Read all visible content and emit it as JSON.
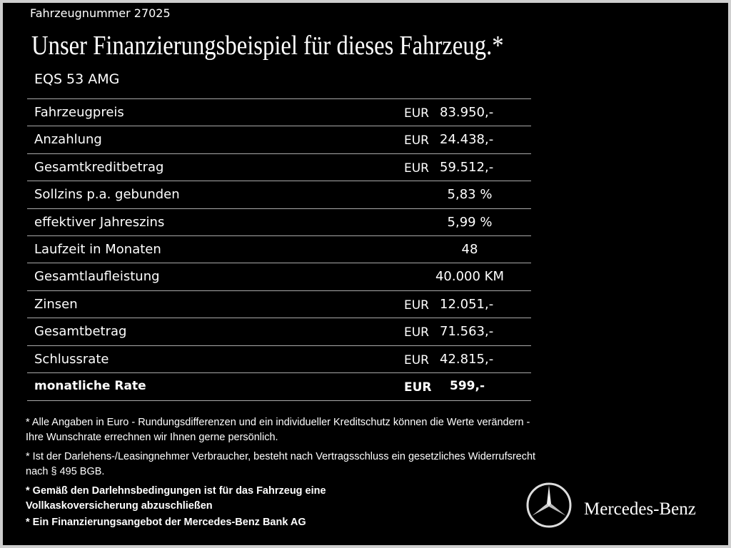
{
  "header": {
    "vehicle_number": "Fahrzeugnummer  27025",
    "title": "Unser Finanzierungsbeispiel für dieses Fahrzeug.*",
    "model": "EQS 53 AMG"
  },
  "table": {
    "rows": [
      {
        "label": "Fahrzeugpreis",
        "currency": "EUR",
        "value": "83.950,-"
      },
      {
        "label": "Anzahlung",
        "currency": "EUR",
        "value": "24.438,-"
      },
      {
        "label": "Gesamtkreditbetrag",
        "currency": "EUR",
        "value": "59.512,-"
      },
      {
        "label": "Sollzins p.a. gebunden",
        "value": "5,83 %"
      },
      {
        "label": "effektiver Jahreszins",
        "value": "5,99 %"
      },
      {
        "label": "Laufzeit in Monaten",
        "value": "48"
      },
      {
        "label": "Gesamtlaufleistung",
        "value": "40.000 KM"
      },
      {
        "label": "Zinsen",
        "currency": "EUR",
        "value": "12.051,-"
      },
      {
        "label": "Gesamtbetrag",
        "currency": "EUR",
        "value": "71.563,-"
      },
      {
        "label": "Schlussrate",
        "currency": "EUR",
        "value": "42.815,-"
      },
      {
        "label": "monatliche Rate",
        "currency": "EUR",
        "value": "599,-"
      }
    ]
  },
  "footnotes": [
    "* Alle Angaben in Euro - Rundungsdifferenzen und ein individueller Kreditschutz können die Werte verändern - Ihre Wunschrate errechnen wir Ihnen gerne persönlich.",
    "* Ist der Darlehens-/Leasingnehmer Verbraucher, besteht nach Vertragsschluss ein gesetzliches Widerrufsrecht nach § 495 BGB.",
    "* Gemäß den Darlehnsbedingungen ist für das Fahrzeug eine Vollkaskoversicherung abzuschließen",
    "* Ein Finanzierungsangebot der Mercedes-Benz Bank AG"
  ],
  "logo": {
    "brand": "Mercedes-Benz"
  }
}
